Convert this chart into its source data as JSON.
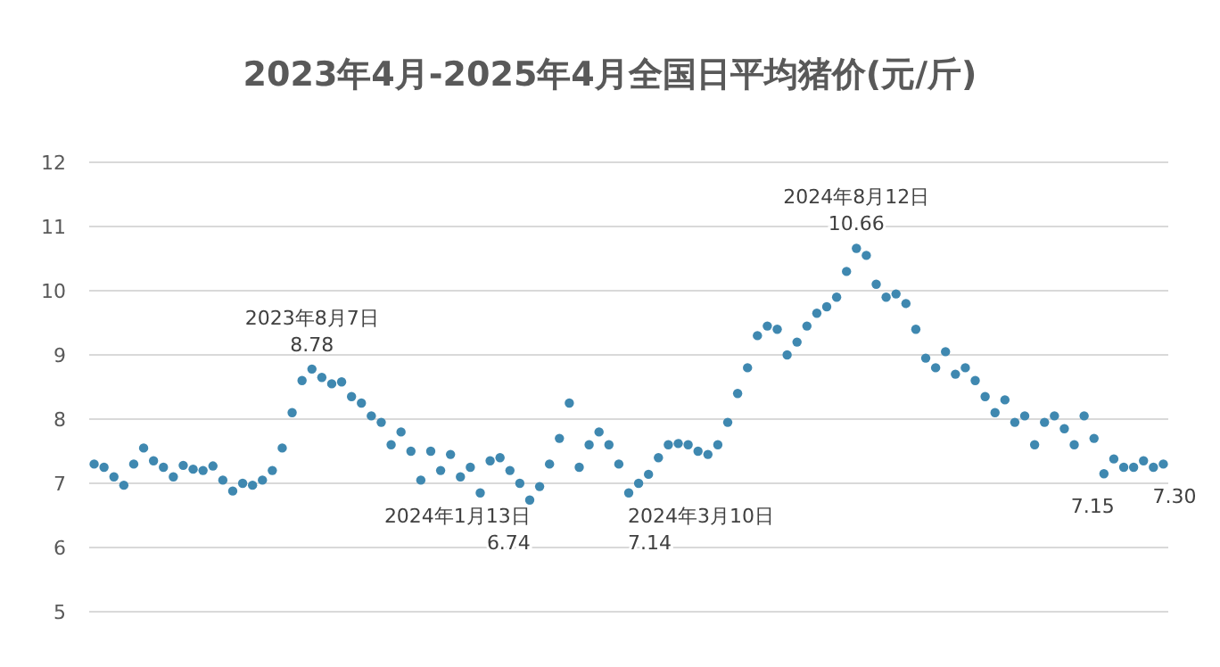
{
  "chart_data": {
    "type": "scatter",
    "title": "2023年4月-2025年4月全国日平均猪价(元/斤)",
    "categories": [
      null,
      null,
      null,
      null,
      null,
      null,
      null,
      null,
      null,
      null,
      null,
      null,
      null,
      null,
      null,
      null,
      null,
      null,
      null,
      null,
      null,
      null,
      null,
      null,
      null,
      null,
      null,
      null,
      null,
      null,
      null,
      null,
      null,
      null,
      null,
      null,
      null,
      null,
      null,
      null,
      null,
      null,
      null,
      null,
      null,
      null,
      null,
      null,
      null,
      null,
      null,
      null,
      null,
      null,
      null,
      null,
      null,
      null,
      null,
      null,
      null,
      null,
      null,
      null,
      null,
      null,
      null,
      null,
      null,
      null,
      null,
      null,
      null,
      null,
      null,
      null,
      null,
      null,
      null,
      null,
      null,
      null,
      null,
      null,
      null,
      null,
      null,
      null,
      null,
      null,
      null,
      null,
      null,
      null,
      null,
      null,
      null,
      null,
      null,
      null,
      null,
      null,
      null,
      null,
      null,
      null,
      null,
      null,
      null
    ],
    "series": [
      {
        "color": "#3f88b0",
        "values": [
          7.3,
          7.25,
          7.1,
          6.97,
          7.3,
          7.55,
          7.35,
          7.25,
          7.1,
          7.28,
          7.22,
          7.2,
          7.27,
          7.05,
          6.88,
          7.0,
          6.97,
          7.05,
          7.2,
          7.55,
          8.1,
          8.6,
          8.78,
          8.65,
          8.55,
          8.58,
          8.35,
          8.25,
          8.05,
          7.95,
          7.6,
          7.8,
          7.5,
          7.05,
          7.5,
          7.2,
          7.45,
          7.1,
          7.25,
          6.85,
          7.35,
          7.4,
          7.2,
          7.0,
          6.74,
          6.95,
          7.3,
          7.7,
          8.25,
          7.25,
          7.6,
          7.8,
          7.6,
          7.3,
          6.85,
          7.0,
          7.14,
          7.4,
          7.6,
          7.62,
          7.6,
          7.5,
          7.45,
          7.6,
          7.95,
          8.4,
          8.8,
          9.3,
          9.45,
          9.4,
          9.0,
          9.2,
          9.45,
          9.65,
          9.75,
          9.9,
          10.3,
          10.66,
          10.55,
          10.1,
          9.9,
          9.95,
          9.8,
          9.4,
          8.95,
          8.8,
          9.05,
          8.7,
          8.8,
          8.6,
          8.35,
          8.1,
          8.3,
          7.95,
          8.05,
          7.6,
          7.95,
          8.05,
          7.85,
          7.6,
          8.05,
          7.7,
          7.15,
          7.38,
          7.25,
          7.25,
          7.35,
          7.25,
          7.3
        ],
        "value_labels": [
          null,
          null,
          null,
          null,
          null,
          null,
          null,
          null,
          null,
          null,
          null,
          null,
          null,
          null,
          null,
          null,
          null,
          null,
          null,
          null,
          null,
          null,
          "2023年8月7日\n8.78",
          null,
          null,
          null,
          null,
          null,
          null,
          null,
          null,
          null,
          null,
          null,
          null,
          null,
          null,
          null,
          null,
          null,
          null,
          null,
          null,
          "2024年1月13日\n6.74",
          null,
          null,
          null,
          null,
          null,
          null,
          null,
          null,
          null,
          null,
          null,
          "2024年3月10日\n7.14",
          null,
          null,
          null,
          null,
          null,
          null,
          null,
          null,
          null,
          null,
          null,
          null,
          null,
          null,
          null,
          null,
          null,
          null,
          null,
          null,
          null,
          "2024年8月12日\n10.66",
          null,
          null,
          null,
          null,
          null,
          null,
          null,
          null,
          null,
          null,
          null,
          null,
          null,
          null,
          null,
          null,
          null,
          null,
          null,
          null,
          null,
          null,
          null,
          null,
          "7.15",
          null,
          null,
          null,
          null,
          null,
          "7.30"
        ]
      }
    ],
    "ylim": [
      5,
      12
    ],
    "yticks": [
      5,
      6,
      7,
      8,
      9,
      10,
      11,
      12
    ],
    "grid": "y",
    "marker": "circle"
  }
}
